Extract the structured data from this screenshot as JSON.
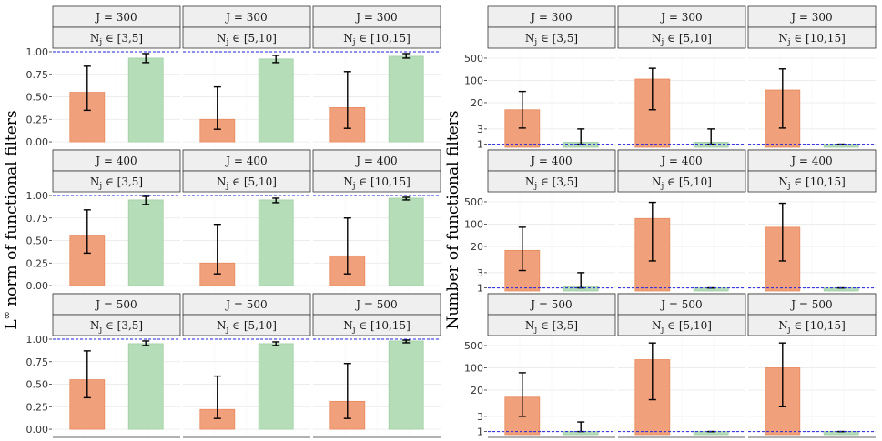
{
  "figure": {
    "left_ylabel": "L",
    "left_ylabel_sup": "∞",
    "left_ylabel_rest": " norm of functional filters",
    "right_ylabel": "Number of functional filters"
  },
  "colors": {
    "orange": "#f0a07a",
    "orange_edge": "#e8895e",
    "green": "#b5ddb8",
    "green_edge": "#9fcea3",
    "ref_line": "#2222dd"
  },
  "chart_data": [
    {
      "type": "bar",
      "ylabel": "L∞ norm of functional filters",
      "ylim": [
        0,
        1
      ],
      "yticks": [
        "0.00",
        "0.25",
        "0.50",
        "0.75",
        "1.00"
      ],
      "reference_line": 1.0,
      "grid": true,
      "panels": [
        {
          "J": "J = 300",
          "range": "[3,5]",
          "bars": [
            {
              "value": 0.55,
              "lo": 0.35,
              "hi": 0.84
            },
            {
              "value": 0.93,
              "lo": 0.88,
              "hi": 0.98
            }
          ]
        },
        {
          "J": "J = 300",
          "range": "[5,10]",
          "bars": [
            {
              "value": 0.25,
              "lo": 0.14,
              "hi": 0.61
            },
            {
              "value": 0.92,
              "lo": 0.88,
              "hi": 0.96
            }
          ]
        },
        {
          "J": "J = 300",
          "range": "[10,15]",
          "bars": [
            {
              "value": 0.38,
              "lo": 0.15,
              "hi": 0.78
            },
            {
              "value": 0.95,
              "lo": 0.93,
              "hi": 0.98
            }
          ]
        },
        {
          "J": "J = 400",
          "range": "[3,5]",
          "bars": [
            {
              "value": 0.56,
              "lo": 0.36,
              "hi": 0.84
            },
            {
              "value": 0.95,
              "lo": 0.9,
              "hi": 0.99
            }
          ]
        },
        {
          "J": "J = 400",
          "range": "[5,10]",
          "bars": [
            {
              "value": 0.25,
              "lo": 0.13,
              "hi": 0.68
            },
            {
              "value": 0.95,
              "lo": 0.92,
              "hi": 0.97
            }
          ]
        },
        {
          "J": "J = 400",
          "range": "[10,15]",
          "bars": [
            {
              "value": 0.33,
              "lo": 0.13,
              "hi": 0.75
            },
            {
              "value": 0.97,
              "lo": 0.95,
              "hi": 0.98
            }
          ]
        },
        {
          "J": "J = 500",
          "range": "[3,5]",
          "bars": [
            {
              "value": 0.55,
              "lo": 0.35,
              "hi": 0.87
            },
            {
              "value": 0.95,
              "lo": 0.93,
              "hi": 0.98
            }
          ]
        },
        {
          "J": "J = 500",
          "range": "[5,10]",
          "bars": [
            {
              "value": 0.22,
              "lo": 0.12,
              "hi": 0.59
            },
            {
              "value": 0.95,
              "lo": 0.93,
              "hi": 0.97
            }
          ]
        },
        {
          "J": "J = 500",
          "range": "[10,15]",
          "bars": [
            {
              "value": 0.31,
              "lo": 0.12,
              "hi": 0.73
            },
            {
              "value": 0.98,
              "lo": 0.96,
              "hi": 0.99
            }
          ]
        }
      ]
    },
    {
      "type": "bar",
      "ylabel": "Number of functional filters",
      "scale": "log",
      "ylim": [
        0.8,
        900
      ],
      "yticks": [
        1,
        3,
        20,
        100,
        500
      ],
      "reference_line": 1,
      "grid": true,
      "panels": [
        {
          "J": "J = 300",
          "range": "[3,5]",
          "bars": [
            {
              "value": 12,
              "lo": 3.2,
              "hi": 45
            },
            {
              "value": 1.15,
              "lo": 1.0,
              "hi": 3.0
            }
          ]
        },
        {
          "J": "J = 300",
          "range": "[5,10]",
          "bars": [
            {
              "value": 110,
              "lo": 12,
              "hi": 240
            },
            {
              "value": 1.15,
              "lo": 1.0,
              "hi": 3.0
            }
          ]
        },
        {
          "J": "J = 300",
          "range": "[10,15]",
          "bars": [
            {
              "value": 50,
              "lo": 3.2,
              "hi": 230
            },
            {
              "value": 1.0,
              "lo": 1.0,
              "hi": 1.0
            }
          ]
        },
        {
          "J": "J = 400",
          "range": "[3,5]",
          "bars": [
            {
              "value": 15,
              "lo": 3.5,
              "hi": 80
            },
            {
              "value": 1.1,
              "lo": 1.0,
              "hi": 3.0
            }
          ]
        },
        {
          "J": "J = 400",
          "range": "[5,10]",
          "bars": [
            {
              "value": 150,
              "lo": 7,
              "hi": 480
            },
            {
              "value": 1.0,
              "lo": 1.0,
              "hi": 1.0
            }
          ]
        },
        {
          "J": "J = 400",
          "range": "[10,15]",
          "bars": [
            {
              "value": 80,
              "lo": 7,
              "hi": 450
            },
            {
              "value": 1.0,
              "lo": 1.0,
              "hi": 1.0
            }
          ]
        },
        {
          "J": "J = 500",
          "range": "[3,5]",
          "bars": [
            {
              "value": 12,
              "lo": 3,
              "hi": 70
            },
            {
              "value": 1.0,
              "lo": 1.0,
              "hi": 2.0
            }
          ]
        },
        {
          "J": "J = 500",
          "range": "[5,10]",
          "bars": [
            {
              "value": 180,
              "lo": 10,
              "hi": 600
            },
            {
              "value": 1.0,
              "lo": 1.0,
              "hi": 1.0
            }
          ]
        },
        {
          "J": "J = 500",
          "range": "[10,15]",
          "bars": [
            {
              "value": 100,
              "lo": 6,
              "hi": 600
            },
            {
              "value": 1.0,
              "lo": 1.0,
              "hi": 1.0
            }
          ]
        }
      ]
    }
  ]
}
